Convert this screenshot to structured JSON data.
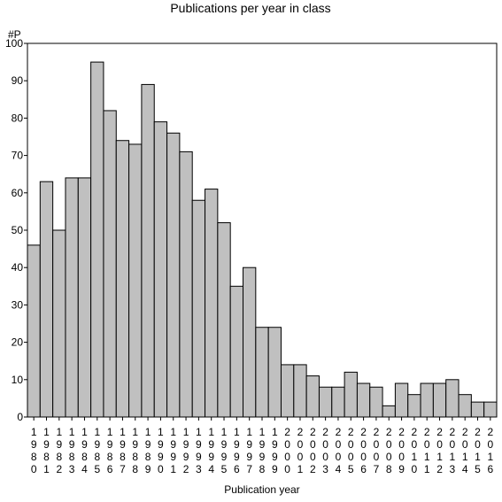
{
  "chart_data": {
    "type": "bar",
    "title": "Publications per year in class",
    "ylabel": "#P",
    "xlabel": "Publication year",
    "ylim": [
      0,
      100
    ],
    "yticks": [
      0,
      10,
      20,
      30,
      40,
      50,
      60,
      70,
      80,
      90,
      100
    ],
    "categories": [
      "1980",
      "1981",
      "1982",
      "1983",
      "1984",
      "1985",
      "1986",
      "1987",
      "1988",
      "1989",
      "1990",
      "1991",
      "1992",
      "1993",
      "1994",
      "1995",
      "1996",
      "1997",
      "1998",
      "1999",
      "2000",
      "2001",
      "2002",
      "2003",
      "2004",
      "2005",
      "2006",
      "2007",
      "2008",
      "2009",
      "2010",
      "2011",
      "2012",
      "2013",
      "2014",
      "2015",
      "2016"
    ],
    "values": [
      46,
      63,
      50,
      64,
      64,
      95,
      82,
      74,
      73,
      89,
      79,
      76,
      71,
      58,
      61,
      52,
      35,
      40,
      24,
      24,
      14,
      14,
      11,
      8,
      8,
      12,
      9,
      8,
      3,
      9,
      6,
      9,
      9,
      10,
      6,
      4,
      4
    ],
    "bar_color": "#c0c0c0",
    "grid": false
  }
}
